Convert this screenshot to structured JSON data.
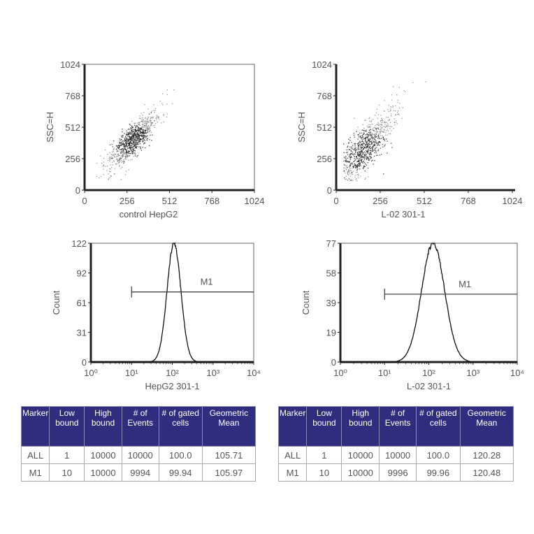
{
  "chart_data": [
    {
      "type": "scatter",
      "xlabel": "control HepG2",
      "ylabel": "SSC=H",
      "xlim": [
        0,
        1024
      ],
      "ylim": [
        0,
        1024
      ],
      "xticks": [
        "0",
        "256",
        "512",
        "768",
        "1024"
      ],
      "yticks": [
        "0",
        "256",
        "512",
        "768",
        "1024"
      ],
      "cluster": {
        "center_x": 290,
        "center_y": 410,
        "sd_major": 110,
        "sd_minor": 35,
        "angle_deg": 60,
        "n_points": 900
      }
    },
    {
      "type": "scatter",
      "xlabel": "L-02   301-1",
      "ylabel": "SSC=H",
      "xlim": [
        0,
        1024
      ],
      "ylim": [
        0,
        1024
      ],
      "xticks": [
        "0",
        "256",
        "512",
        "768",
        "1024"
      ],
      "yticks": [
        "0",
        "256",
        "512",
        "768",
        "1024"
      ],
      "cluster": {
        "center_x": 150,
        "center_y": 330,
        "sd_major": 150,
        "sd_minor": 45,
        "angle_deg": 62,
        "n_points": 900
      }
    },
    {
      "type": "line",
      "subtype": "histogram",
      "xlabel": "HepG2  301-1",
      "ylabel": "Count",
      "xscale": "log",
      "xlim": [
        1,
        10000
      ],
      "ylim": [
        0,
        122
      ],
      "xticks": [
        "10⁰",
        "10¹",
        "10²",
        "10³",
        "10⁴"
      ],
      "yticks": [
        "0",
        "31",
        "61",
        "92",
        "122"
      ],
      "peak_x": 110,
      "peak_count": 122,
      "log_sd": 0.17,
      "marker": {
        "label": "M1",
        "from": 10,
        "to": 10000,
        "count_level": 72
      }
    },
    {
      "type": "line",
      "subtype": "histogram",
      "xlabel": "L-02   301-1",
      "ylabel": "Count",
      "xscale": "log",
      "xlim": [
        1,
        10000
      ],
      "ylim": [
        0,
        77
      ],
      "xticks": [
        "10⁰",
        "10¹",
        "10²",
        "10³",
        "10⁴"
      ],
      "yticks": [
        "0",
        "19",
        "39",
        "58",
        "77"
      ],
      "peak_x": 125,
      "peak_count": 77,
      "log_sd": 0.26,
      "marker": {
        "label": "M1",
        "from": 10,
        "to": 10000,
        "count_level": 44
      }
    }
  ],
  "tables": [
    {
      "headers": [
        "Marker",
        "Low bound",
        "High bound",
        "# of Events",
        "# of gated cells",
        "Geometric Mean"
      ],
      "rows": [
        [
          "ALL",
          "1",
          "10000",
          "10000",
          "100.0",
          "105.71"
        ],
        [
          "M1",
          "10",
          "10000",
          "9994",
          "99.94",
          "105.97"
        ]
      ]
    },
    {
      "headers": [
        "Marker",
        "Low bound",
        "High bound",
        "# of Events",
        "# of gated cells",
        "Geometric Mean"
      ],
      "rows": [
        [
          "ALL",
          "1",
          "10000",
          "10000",
          "100.0",
          "120.28"
        ],
        [
          "M1",
          "10",
          "10000",
          "9996",
          "99.96",
          "120.48"
        ]
      ]
    }
  ],
  "colors": {
    "header_bg": "#2f2e7e",
    "header_text": "#ffffff",
    "points": "#222222",
    "axis": "#222222"
  }
}
